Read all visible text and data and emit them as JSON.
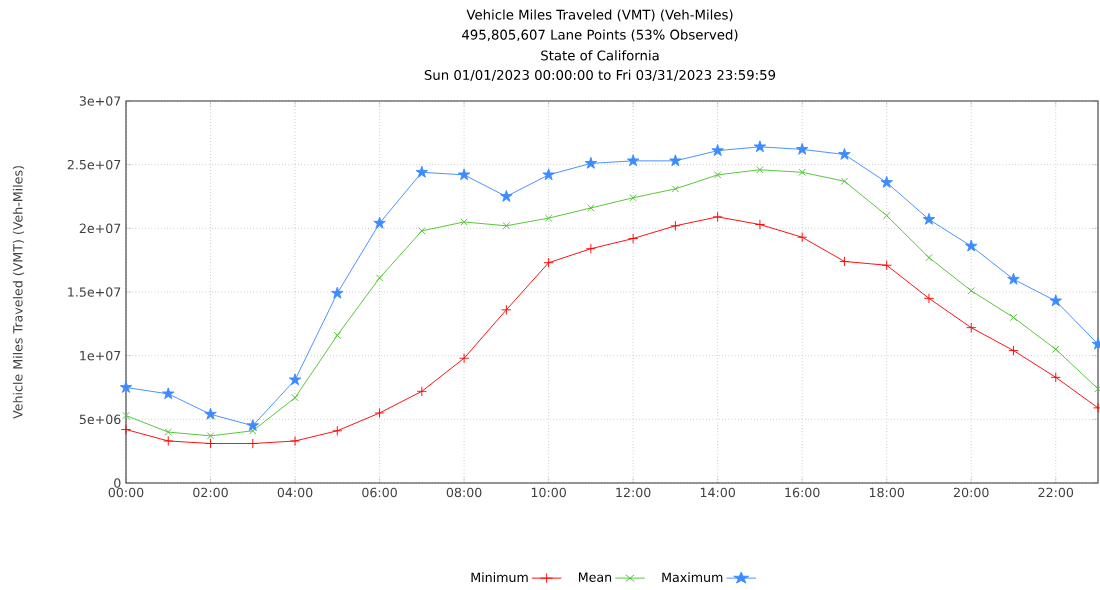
{
  "chart_data": {
    "type": "line",
    "title": "Vehicle Miles Traveled (VMT) (Veh-Miles)",
    "subtitle": "495,805,607 Lane Points (53% Observed)",
    "annotations": [
      "State of California",
      "Sun 01/01/2023 00:00:00 to Fri 03/31/2023 23:59:59"
    ],
    "ylabel": "Vehicle Miles Traveled (VMT) (Veh-Miles)",
    "x": [
      0,
      1,
      2,
      3,
      4,
      5,
      6,
      7,
      8,
      9,
      10,
      11,
      12,
      13,
      14,
      15,
      16,
      17,
      18,
      19,
      20,
      21,
      22,
      23
    ],
    "xlim": [
      0,
      23
    ],
    "xticks": [
      {
        "value": 0,
        "label": "00:00"
      },
      {
        "value": 2,
        "label": "02:00"
      },
      {
        "value": 4,
        "label": "04:00"
      },
      {
        "value": 6,
        "label": "06:00"
      },
      {
        "value": 8,
        "label": "08:00"
      },
      {
        "value": 10,
        "label": "10:00"
      },
      {
        "value": 12,
        "label": "12:00"
      },
      {
        "value": 14,
        "label": "14:00"
      },
      {
        "value": 16,
        "label": "16:00"
      },
      {
        "value": 18,
        "label": "18:00"
      },
      {
        "value": 20,
        "label": "20:00"
      },
      {
        "value": 22,
        "label": "22:00"
      }
    ],
    "ylim": [
      0,
      30000000
    ],
    "yticks": [
      0,
      {
        "value": 5000000,
        "label": "5e+06"
      },
      {
        "value": 10000000,
        "label": "1e+07"
      },
      {
        "value": 15000000,
        "label": "1.5e+07"
      },
      {
        "value": 20000000,
        "label": "2e+07"
      },
      {
        "value": 25000000,
        "label": "2.5e+07"
      },
      {
        "value": 30000000,
        "label": "3e+07"
      }
    ],
    "grid": true,
    "legend": "bottom",
    "series": [
      {
        "name": "Minimum",
        "color": "#ff0000",
        "marker": "plus",
        "values": [
          4200000,
          3300000,
          3100000,
          3100000,
          3300000,
          4100000,
          5500000,
          7200000,
          9800000,
          13600000,
          17300000,
          18400000,
          19200000,
          20200000,
          20900000,
          20300000,
          19300000,
          17400000,
          17100000,
          14500000,
          12200000,
          10400000,
          8300000,
          5900000
        ]
      },
      {
        "name": "Mean",
        "color": "#4cc32f",
        "marker": "cross",
        "values": [
          5300000,
          4000000,
          3700000,
          4100000,
          6700000,
          11600000,
          16100000,
          19800000,
          20500000,
          20200000,
          20800000,
          21600000,
          22400000,
          23100000,
          24200000,
          24600000,
          24400000,
          23700000,
          21000000,
          17700000,
          15100000,
          13000000,
          10500000,
          7400000
        ]
      },
      {
        "name": "Maximum",
        "color": "#3d8cff",
        "marker": "star",
        "values": [
          7500000,
          7000000,
          5400000,
          4500000,
          8100000,
          14900000,
          20400000,
          24400000,
          24200000,
          22500000,
          24200000,
          25100000,
          25300000,
          25300000,
          26100000,
          26400000,
          26200000,
          25800000,
          23600000,
          20700000,
          18600000,
          16000000,
          14300000,
          10900000
        ]
      }
    ]
  }
}
